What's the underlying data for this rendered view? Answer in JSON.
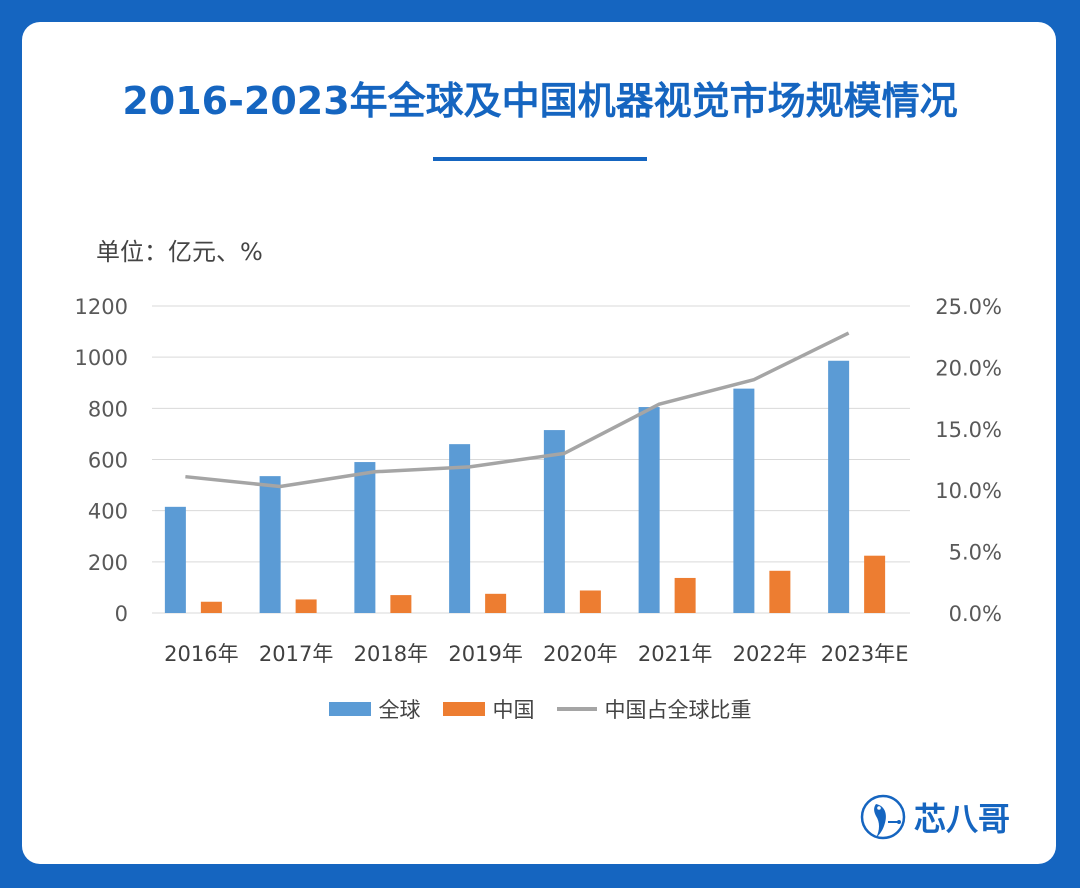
{
  "title": "2016-2023年全球及中国机器视觉市场规模情况",
  "unit_label": "单位：亿元、%",
  "colors": {
    "background": "#1565c0",
    "global": "#5b9bd5",
    "china": "#ed7d31",
    "ratio": "#a5a5a5",
    "accent": "#1565c0"
  },
  "chart_data": {
    "type": "bar",
    "categories": [
      "2016年",
      "2017年",
      "2018年",
      "2019年",
      "2020年",
      "2021年",
      "2022年",
      "2023年E"
    ],
    "series": [
      {
        "name": "全球",
        "type": "bar",
        "axis": "left",
        "values": [
          415,
          535,
          590,
          660,
          715,
          805,
          877,
          986
        ]
      },
      {
        "name": "中国",
        "type": "bar",
        "axis": "left",
        "values": [
          44,
          53,
          70,
          75,
          88,
          137,
          165,
          224
        ]
      },
      {
        "name": "中国占全球比重",
        "type": "line",
        "axis": "right",
        "values": [
          11.1,
          10.3,
          11.5,
          11.9,
          13.0,
          17.0,
          19.0,
          22.8
        ]
      }
    ],
    "ylim": [
      0,
      1200
    ],
    "yticks": [
      "0",
      "200",
      "400",
      "600",
      "800",
      "1000",
      "1200"
    ],
    "y2lim": [
      0,
      25
    ],
    "y2ticks": [
      "0.0%",
      "5.0%",
      "10.0%",
      "15.0%",
      "20.0%",
      "25.0%"
    ],
    "grid": true,
    "legend": "bottom"
  },
  "legend": [
    {
      "label": "全球"
    },
    {
      "label": "中国"
    },
    {
      "label": "中国占全球比重"
    }
  ],
  "logo": {
    "text": "芯八哥",
    "icon": "bird-logo-icon"
  }
}
